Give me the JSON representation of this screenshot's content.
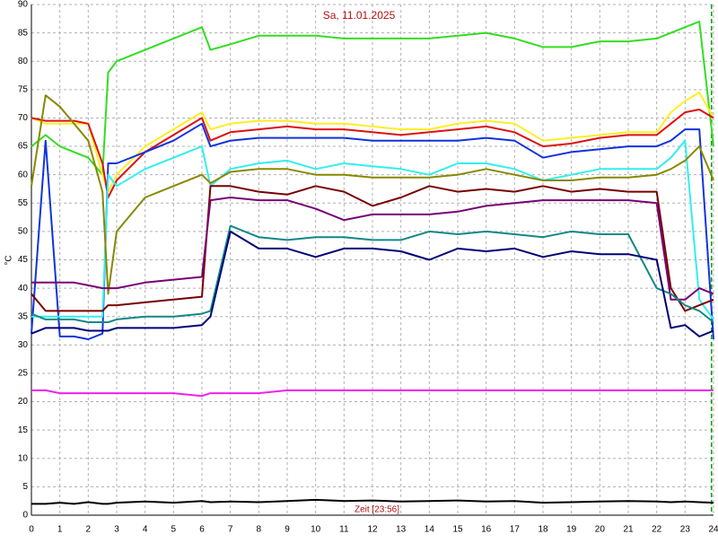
{
  "chart_data": {
    "type": "line",
    "title": "Sa, 11.01.2025",
    "ylabel": "°C",
    "xlabel": "Zeit [23:56]",
    "xlim": [
      0,
      24
    ],
    "ylim": [
      0,
      90
    ],
    "xticks": [
      0,
      1,
      2,
      3,
      4,
      5,
      6,
      7,
      8,
      9,
      10,
      11,
      12,
      13,
      14,
      15,
      16,
      17,
      18,
      19,
      20,
      21,
      22,
      23,
      24
    ],
    "yticks": [
      0,
      5,
      10,
      15,
      20,
      25,
      30,
      35,
      40,
      45,
      50,
      55,
      60,
      65,
      70,
      75,
      80,
      85,
      90
    ],
    "grid": true,
    "now_x": 23.93,
    "now_color": "#00a000",
    "x": [
      0,
      0.5,
      1,
      1.5,
      2,
      2.5,
      2.7,
      3,
      4,
      5,
      6,
      6.3,
      7,
      8,
      9,
      10,
      11,
      12,
      13,
      14,
      15,
      16,
      17,
      18,
      19,
      20,
      21,
      22,
      22.5,
      23,
      23.5,
      24
    ],
    "series": [
      {
        "color": "#33dd22",
        "values": [
          65,
          67,
          65,
          64,
          63,
          60,
          78,
          80,
          82,
          84,
          86,
          82,
          83,
          84.5,
          84.5,
          84.5,
          84,
          84,
          84,
          84,
          84.5,
          85,
          84,
          82.5,
          82.5,
          83.5,
          83.5,
          84,
          85,
          86,
          87,
          65
        ]
      },
      {
        "color": "#ffee22",
        "values": [
          70,
          69,
          69,
          69,
          69,
          60,
          57,
          60,
          65,
          68,
          71,
          68,
          69,
          69.5,
          69.5,
          69,
          69,
          68.5,
          68,
          68,
          69,
          69.5,
          69,
          66,
          66.5,
          67,
          67.5,
          67.5,
          71,
          73,
          74.5,
          70
        ]
      },
      {
        "color": "#dd1111",
        "values": [
          70,
          69.5,
          69.5,
          69.5,
          69,
          62,
          56,
          59,
          64,
          67,
          70,
          66,
          67.5,
          68,
          68.5,
          68,
          68,
          67.5,
          67,
          67.5,
          68,
          68.5,
          67.5,
          65,
          65.5,
          66.5,
          67,
          67,
          69,
          71,
          71.5,
          70
        ]
      },
      {
        "color": "#1133dd",
        "values": [
          32,
          66,
          31.5,
          31.5,
          31,
          32,
          62,
          62,
          64,
          66,
          69,
          65,
          66,
          66.5,
          66.5,
          66.5,
          66.5,
          66,
          66,
          66,
          66,
          66.5,
          66,
          63,
          64,
          64.5,
          65,
          65,
          66,
          68,
          68,
          31
        ]
      },
      {
        "color": "#33eeee",
        "values": [
          35,
          35,
          35,
          35,
          35,
          35,
          60,
          58,
          61,
          63,
          65,
          58,
          61,
          62,
          62.5,
          61,
          62,
          61.5,
          61,
          60,
          62,
          62,
          61,
          59,
          60,
          61,
          61,
          61,
          63,
          66,
          38,
          34.5
        ]
      },
      {
        "color": "#888800",
        "values": [
          58,
          74,
          72,
          69,
          66,
          57,
          39,
          50,
          56,
          58,
          60,
          58.5,
          60.5,
          61,
          61,
          60,
          60,
          59.5,
          59.5,
          59.5,
          60,
          61,
          60,
          59,
          59,
          59.5,
          59.5,
          60,
          61,
          62.5,
          65,
          59
        ]
      },
      {
        "color": "#770000",
        "values": [
          39,
          36,
          36,
          36,
          36,
          36,
          37,
          37,
          37.5,
          38,
          38.5,
          58,
          58,
          57,
          56.5,
          58,
          57,
          54.5,
          56,
          58,
          57,
          57.5,
          57,
          58,
          57,
          57.5,
          57,
          57,
          40,
          36,
          37,
          38
        ]
      },
      {
        "color": "#770077",
        "values": [
          41,
          41,
          41,
          41,
          40.5,
          40,
          40,
          40,
          41,
          41.5,
          42,
          55.5,
          56,
          55.5,
          55.5,
          54,
          52,
          53,
          53,
          53,
          53.5,
          54.5,
          55,
          55.5,
          55.5,
          55.5,
          55.5,
          55,
          38,
          38,
          40,
          39
        ]
      },
      {
        "color": "#118888",
        "values": [
          35.5,
          34.5,
          34.5,
          34.5,
          34,
          34,
          34,
          34.5,
          35,
          35,
          35.5,
          36,
          51,
          49,
          48.5,
          49,
          49,
          48.5,
          48.5,
          50,
          49.5,
          50,
          49.5,
          49,
          50,
          49.5,
          49.5,
          40,
          39,
          37,
          36,
          34
        ]
      },
      {
        "color": "#000077",
        "values": [
          32,
          33,
          33,
          33,
          32.5,
          32.5,
          32.5,
          33,
          33,
          33,
          33.5,
          35,
          50,
          47,
          47,
          45.5,
          47,
          47,
          46.5,
          45,
          47,
          46.5,
          47,
          45.5,
          46.5,
          46,
          46,
          45,
          33,
          33.5,
          31.5,
          32.5
        ]
      },
      {
        "color": "#ee22ee",
        "values": [
          22,
          22,
          21.5,
          21.5,
          21.5,
          21.5,
          21.5,
          21.5,
          21.5,
          21.5,
          21,
          21.5,
          21.5,
          21.5,
          22,
          22,
          22,
          22,
          22,
          22,
          22,
          22,
          22,
          22,
          22,
          22,
          22,
          22,
          22,
          22,
          22,
          22
        ]
      },
      {
        "color": "#000000",
        "values": [
          2,
          2,
          2.2,
          2,
          2.3,
          2,
          2,
          2.2,
          2.4,
          2.2,
          2.5,
          2.3,
          2.4,
          2.3,
          2.5,
          2.7,
          2.5,
          2.6,
          2.4,
          2.5,
          2.6,
          2.4,
          2.5,
          2.2,
          2.3,
          2.4,
          2.5,
          2.4,
          2.3,
          2.4,
          2.3,
          2.2
        ]
      }
    ]
  }
}
